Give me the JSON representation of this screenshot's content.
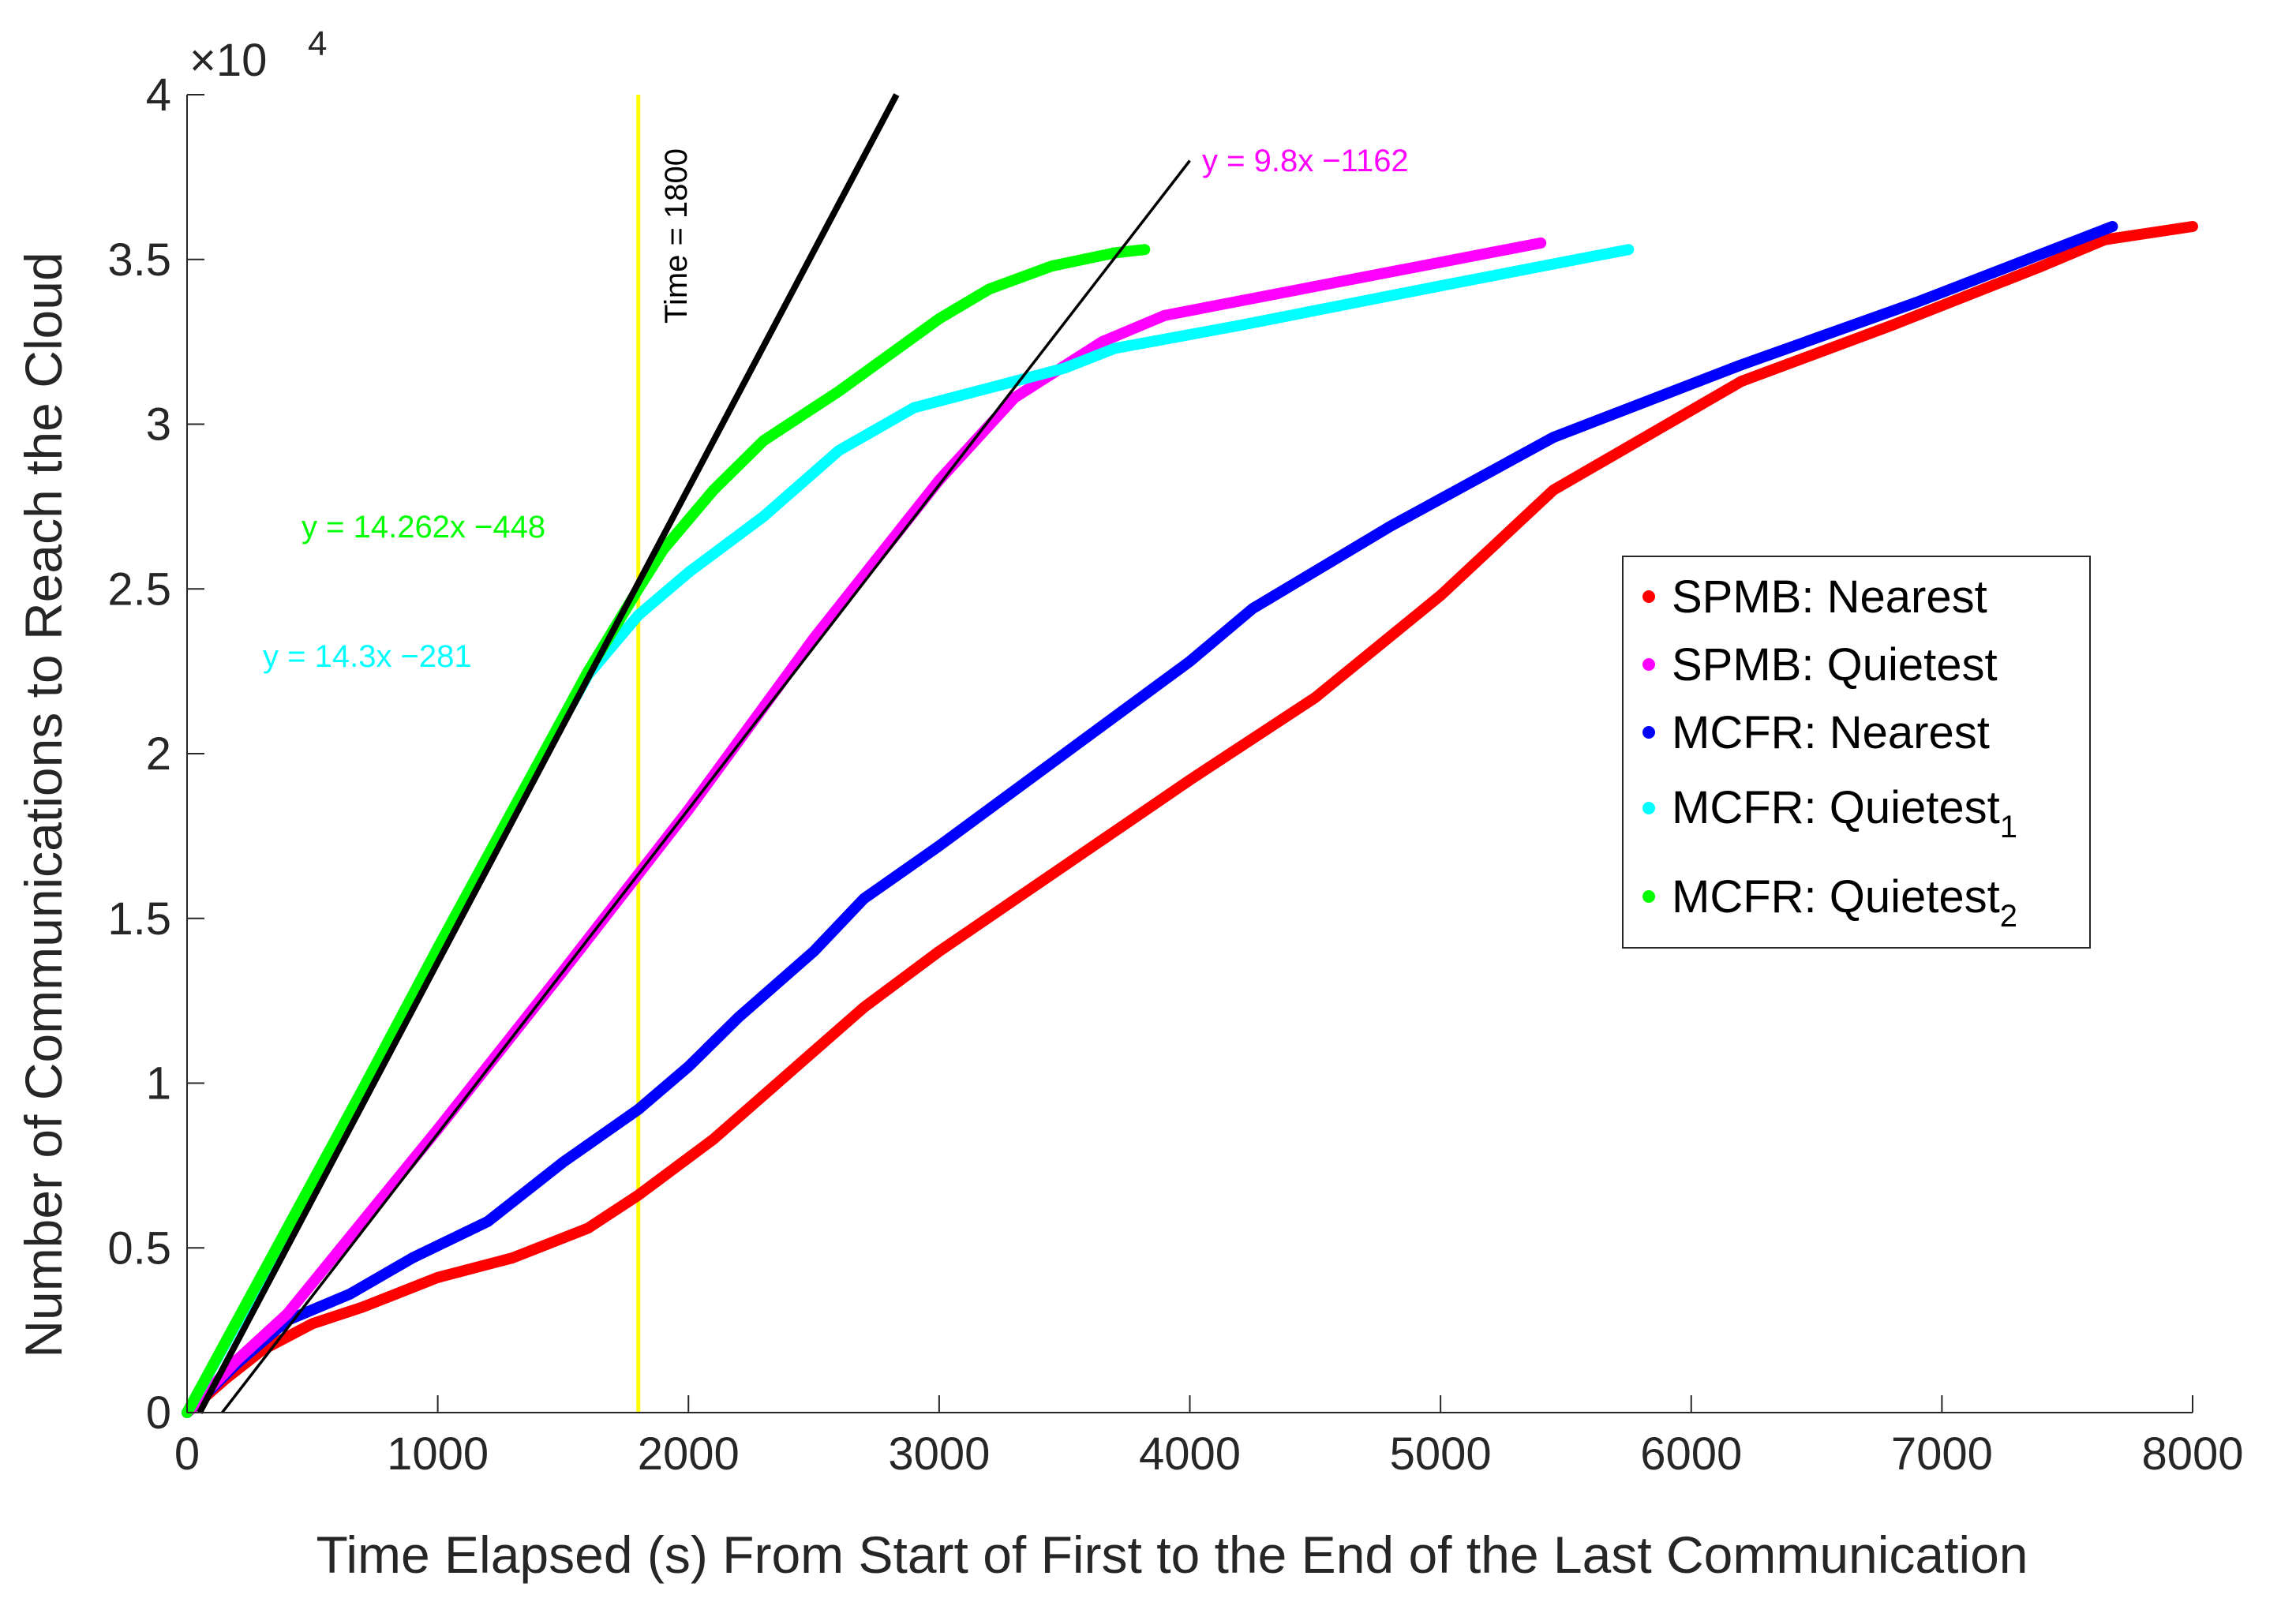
{
  "chart_data": {
    "type": "line",
    "title": "",
    "xlabel": "Time Elapsed (s) From Start of First to the End of the Last Communication",
    "ylabel": "Number of Communications to Reach the Cloud",
    "xlim": [
      0,
      8000
    ],
    "ylim": [
      0,
      40000
    ],
    "x_ticks": [
      0,
      1000,
      2000,
      3000,
      4000,
      5000,
      6000,
      7000,
      8000
    ],
    "y_ticks": [
      0,
      5000,
      10000,
      15000,
      20000,
      25000,
      30000,
      35000,
      40000
    ],
    "y_tick_labels": [
      "0",
      "0.5",
      "1",
      "1.5",
      "2",
      "2.5",
      "3",
      "3.5",
      "4"
    ],
    "y_exponent": {
      "base": "×10",
      "power": "4"
    },
    "grid": false,
    "legend_position": "right",
    "series": [
      {
        "name": "SPMB: Nearest",
        "legend_main": "SPMB: Nearest",
        "legend_sub": "",
        "color": "#ff0000",
        "x": [
          0,
          150,
          300,
          500,
          700,
          1000,
          1300,
          1600,
          1800,
          2100,
          2400,
          2700,
          3000,
          3500,
          4000,
          4500,
          5000,
          5450,
          6200,
          6800,
          7400,
          7650,
          8000
        ],
        "y": [
          0,
          1000,
          1900,
          2700,
          3200,
          4100,
          4700,
          5600,
          6600,
          8300,
          10300,
          12300,
          14000,
          16600,
          19200,
          21700,
          24800,
          28000,
          31300,
          33000,
          34800,
          35600,
          36000
        ]
      },
      {
        "name": "SPMB: Quietest",
        "legend_main": "SPMB: Quietest",
        "legend_sub": "",
        "color": "#ff00ff",
        "x": [
          0,
          200,
          400,
          700,
          1000,
          1500,
          2000,
          2500,
          3000,
          3300,
          3650,
          3900,
          5400
        ],
        "y": [
          0,
          1600,
          3000,
          5800,
          8600,
          13400,
          18300,
          23500,
          28300,
          30800,
          32500,
          33300,
          35500
        ]
      },
      {
        "name": "MCFR: Nearest",
        "legend_main": "MCFR: Nearest",
        "legend_sub": "",
        "color": "#0000ff",
        "x": [
          0,
          200,
          400,
          650,
          900,
          1200,
          1500,
          1800,
          2000,
          2200,
          2500,
          2700,
          3000,
          3500,
          4000,
          4250,
          4800,
          5450,
          6200,
          6900,
          7680
        ],
        "y": [
          0,
          1500,
          2800,
          3600,
          4700,
          5800,
          7600,
          9200,
          10500,
          12000,
          14000,
          15600,
          17200,
          20000,
          22800,
          24400,
          26900,
          29600,
          31800,
          33700,
          36000
        ]
      },
      {
        "name": "MCFR: Quietest1",
        "legend_main": "MCFR: Quietest",
        "legend_sub": "1",
        "color": "#00ffff",
        "x": [
          0,
          300,
          700,
          1000,
          1300,
          1600,
          1800,
          2000,
          2300,
          2600,
          2900,
          3200,
          3500,
          3700,
          4200,
          5000,
          5750
        ],
        "y": [
          0,
          4100,
          9800,
          14000,
          18300,
          22400,
          24200,
          25500,
          27200,
          29200,
          30500,
          31100,
          31700,
          32300,
          33000,
          34200,
          35300
        ]
      },
      {
        "name": "MCFR: Quietest2",
        "legend_main": "MCFR: Quietest",
        "legend_sub": "2",
        "color": "#00ff00",
        "x": [
          0,
          300,
          700,
          1000,
          1300,
          1600,
          1800,
          1900,
          2100,
          2300,
          2600,
          3000,
          3200,
          3450,
          3700,
          3820
        ],
        "y": [
          0,
          4200,
          9800,
          14100,
          18300,
          22500,
          25000,
          26200,
          28000,
          29500,
          31000,
          33200,
          34100,
          34800,
          35200,
          35300
        ]
      }
    ],
    "fit_lines": [
      {
        "name": "black-fit-thick",
        "color": "#000000",
        "x": [
          50,
          2830
        ],
        "y": [
          0,
          40000
        ]
      },
      {
        "name": "black-fit-thin",
        "color": "#000000",
        "x": [
          140,
          4000
        ],
        "y": [
          0,
          38000
        ]
      }
    ],
    "vertical_line": {
      "x": 1800,
      "color": "#ffff00",
      "label": "Time = 1800"
    },
    "annotations": [
      {
        "name": "annot-green",
        "text": "y = 14.262x −448",
        "color": "#00ff00",
        "x": 460,
        "y": 26800
      },
      {
        "name": "annot-cyan",
        "text": "y = 14.3x −281",
        "color": "#00ffff",
        "x": 310,
        "y": 22800
      },
      {
        "name": "annot-magenta",
        "text": "y = 9.8x −1162",
        "color": "#ff00ff",
        "x": 4050,
        "y": 38000
      }
    ]
  }
}
